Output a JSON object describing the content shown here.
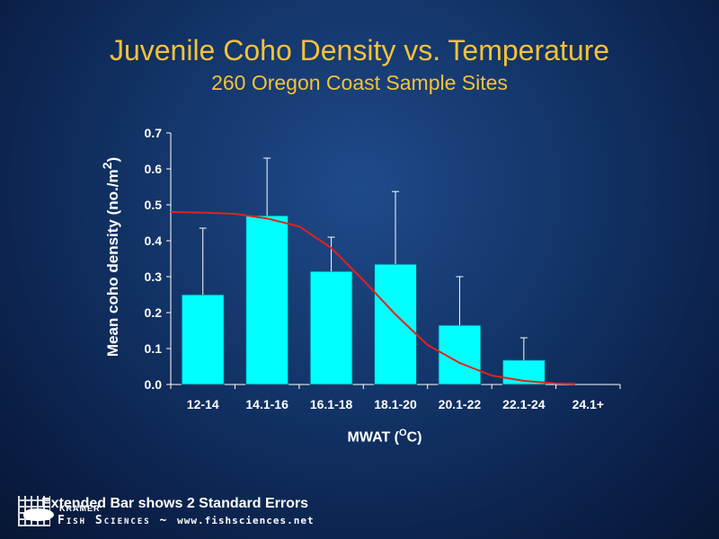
{
  "slide": {
    "title": "Juvenile Coho Density vs. Temperature",
    "subtitle": "260 Oregon Coast Sample Sites",
    "footnote": "Extended Bar shows 2 Standard Errors"
  },
  "logo": {
    "kramer": "KRAMER",
    "name": "Fish Sciences",
    "separator": "~",
    "url": "www.fishsciences.net"
  },
  "chart_data": {
    "type": "bar",
    "title": "Juvenile Coho Density vs. Temperature",
    "subtitle": "260 Oregon Coast Sample Sites",
    "ylabel": "Mean coho density (no./m",
    "ylabel_sup": "2",
    "ylabel_end": ")",
    "xlabel": "MWAT (",
    "xlabel_sup": "O",
    "xlabel_end": "C)",
    "categories": [
      "12-14",
      "14.1-16",
      "16.1-18",
      "18.1-20",
      "20.1-22",
      "22.1-24",
      "24.1+"
    ],
    "values": [
      0.25,
      0.47,
      0.315,
      0.335,
      0.165,
      0.068,
      0.0
    ],
    "error_upper": [
      0.435,
      0.63,
      0.41,
      0.537,
      0.3,
      0.13,
      0.0
    ],
    "ylim": [
      0,
      0.7
    ],
    "yticks": [
      "0.0",
      "0.1",
      "0.2",
      "0.3",
      "0.4",
      "0.5",
      "0.6",
      "0.7"
    ],
    "trend_line": {
      "x": [
        0,
        0.5,
        1,
        1.5,
        2,
        2.5,
        3,
        3.5,
        4,
        4.5,
        5,
        5.5,
        6,
        6.3
      ],
      "y": [
        0.48,
        0.478,
        0.475,
        0.462,
        0.44,
        0.38,
        0.29,
        0.195,
        0.11,
        0.06,
        0.025,
        0.01,
        0.003,
        0.002
      ]
    },
    "colors": {
      "bar": "#00ffff",
      "trend": "#e8201a",
      "axis": "#ffffff",
      "error": "#ffffff"
    },
    "grid": false,
    "legend": "none"
  }
}
